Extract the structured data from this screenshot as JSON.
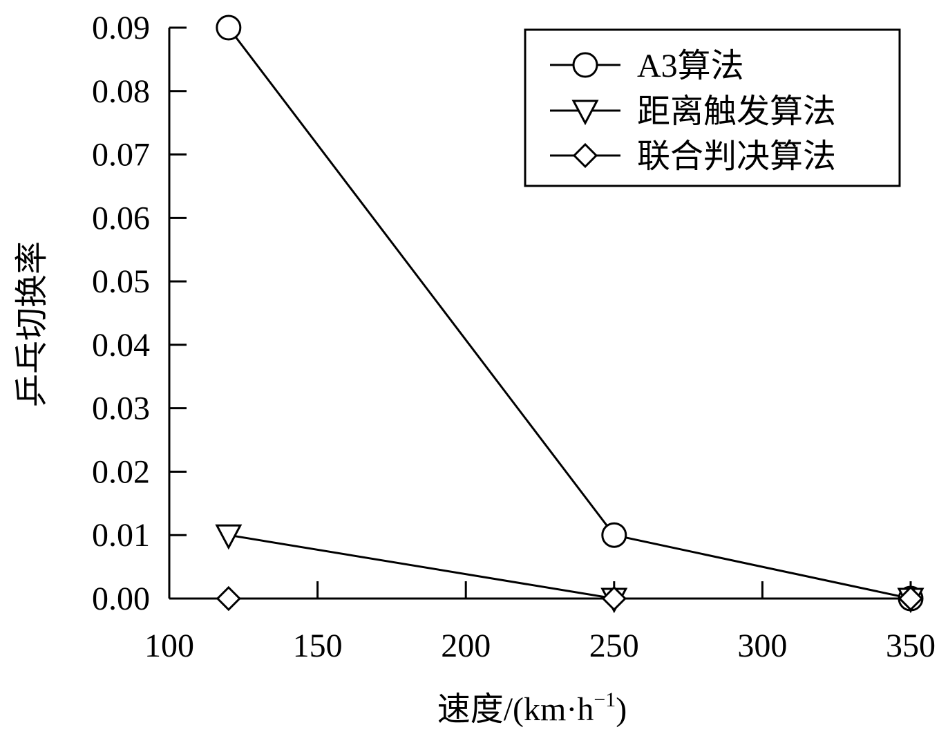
{
  "chart_data": {
    "type": "line",
    "title": "",
    "xlabel": "速度/(km·h",
    "xlabel_sup": "−1",
    "xlabel_close": ")",
    "ylabel": "乒乓切换率",
    "xlim": [
      100,
      350
    ],
    "ylim": [
      0,
      0.09
    ],
    "xticks": [
      100,
      150,
      200,
      250,
      300,
      350
    ],
    "xtick_labels": [
      "100",
      "150",
      "200",
      "250",
      "300",
      "350"
    ],
    "yticks": [
      0,
      0.01,
      0.02,
      0.03,
      0.04,
      0.05,
      0.06,
      0.07,
      0.08,
      0.09
    ],
    "ytick_labels": [
      "0.00",
      "0.01",
      "0.02",
      "0.03",
      "0.04",
      "0.05",
      "0.06",
      "0.07",
      "0.08",
      "0.09"
    ],
    "grid": false,
    "legend_position": "top-right",
    "color": "#000000",
    "series": [
      {
        "name": "A3算法",
        "marker": "circle",
        "x": [
          120,
          250,
          350
        ],
        "y": [
          0.09,
          0.01,
          0.0
        ]
      },
      {
        "name": "距离触发算法",
        "marker": "triangle-down",
        "x": [
          120,
          250,
          350
        ],
        "y": [
          0.01,
          0.0,
          0.0
        ]
      },
      {
        "name": "联合判决算法",
        "marker": "diamond",
        "x": [
          120,
          250,
          350
        ],
        "y": [
          0.0,
          0.0,
          0.0
        ]
      }
    ]
  }
}
